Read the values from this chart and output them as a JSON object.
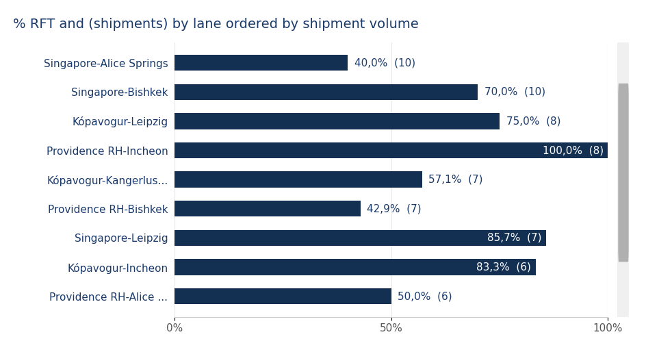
{
  "title": "% RFT and (shipments) by lane ordered by shipment volume",
  "categories": [
    "Providence RH-Alice ...",
    "Kópavogur-Incheon",
    "Singapore-Leipzig",
    "Providence RH-Bishkek",
    "Kópavogur-Kangerlus...",
    "Providence RH-Incheon",
    "Kópavogur-Leipzig",
    "Singapore-Bishkek",
    "Singapore-Alice Springs"
  ],
  "values": [
    50.0,
    83.3,
    85.7,
    42.9,
    57.1,
    100.0,
    75.0,
    70.0,
    40.0
  ],
  "shipments": [
    6,
    6,
    7,
    7,
    7,
    8,
    8,
    10,
    10
  ],
  "bar_color": "#132f52",
  "label_color_inside": "#ffffff",
  "label_color_outside": "#1a3a6b",
  "title_color": "#1a3a6b",
  "tick_color": "#1a3a6b",
  "title_fontsize": 14,
  "label_fontsize": 11,
  "tick_fontsize": 11,
  "background_color": "#ffffff",
  "xlim": [
    0,
    100
  ],
  "xticks": [
    0,
    50,
    100
  ],
  "xticklabels": [
    "0%",
    "50%",
    "100%"
  ],
  "inside_label_threshold": 80,
  "bar_height": 0.55
}
